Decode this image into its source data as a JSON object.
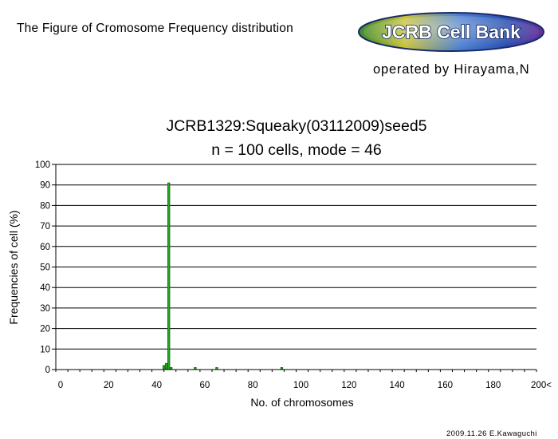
{
  "header": {
    "title": "The Figure of Cromosome Frequency distribution",
    "logo_text": "JCRB Cell Bank",
    "operated_by": "operated by Hirayama,N"
  },
  "footer": {
    "credit": "2009.11.26 E.Kawaguchi"
  },
  "colors": {
    "bar": "#22aa22",
    "bar_edge": "#0a6a0a",
    "grid": "#000000",
    "logo_text": "#ffffff"
  },
  "chart_data": {
    "type": "bar",
    "title": "JCRB1329:Squeaky(03112009)seed5",
    "subtitle": "n = 100 cells, mode = 46",
    "xlabel": "No. of chromosomes",
    "ylabel": "Frequencies of cell (%)",
    "xlim": [
      0,
      200
    ],
    "ylim": [
      0,
      100
    ],
    "x_ticks": [
      "0",
      "20",
      "40",
      "60",
      "80",
      "100",
      "120",
      "140",
      "160",
      "180",
      "200<"
    ],
    "y_ticks": [
      "0",
      "10",
      "20",
      "30",
      "40",
      "50",
      "60",
      "70",
      "80",
      "90",
      "100"
    ],
    "grid": "horizontal",
    "bars": [
      {
        "x": 44,
        "y": 2
      },
      {
        "x": 45,
        "y": 3
      },
      {
        "x": 46,
        "y": 91
      },
      {
        "x": 47,
        "y": 1
      },
      {
        "x": 57,
        "y": 1
      },
      {
        "x": 66,
        "y": 1
      },
      {
        "x": 93,
        "y": 1
      }
    ]
  }
}
